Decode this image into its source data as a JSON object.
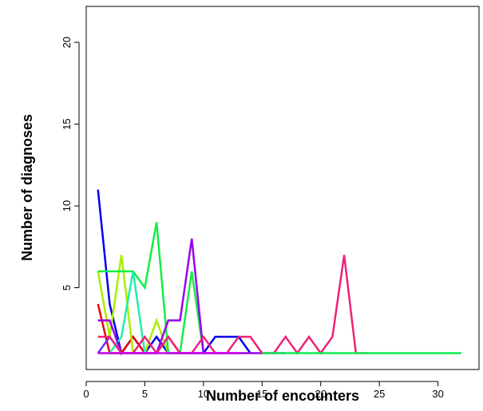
{
  "chart_data": {
    "type": "line",
    "title": "",
    "xlabel": "Number of encounters",
    "ylabel": "Number of diagnoses",
    "xlim": [
      0,
      33.5
    ],
    "ylim": [
      0,
      22.2
    ],
    "x_ticks": [
      0,
      5,
      10,
      15,
      20,
      25,
      30
    ],
    "y_ticks": [
      5,
      10,
      15,
      20
    ],
    "grid": false,
    "legend": "none",
    "series": [
      {
        "color": "#0000EE",
        "points": [
          [
            1,
            11
          ],
          [
            2,
            4
          ],
          [
            3,
            1
          ],
          [
            4,
            2
          ],
          [
            5,
            1
          ],
          [
            6,
            2
          ],
          [
            7,
            1
          ],
          [
            8,
            1
          ],
          [
            9,
            1
          ],
          [
            10,
            1
          ],
          [
            11,
            2
          ],
          [
            12,
            2
          ],
          [
            13,
            2
          ],
          [
            14,
            1
          ]
        ]
      },
      {
        "color": "#EE0000",
        "points": [
          [
            1,
            4
          ],
          [
            2,
            1
          ],
          [
            3,
            1
          ],
          [
            4,
            2
          ],
          [
            5,
            1
          ],
          [
            6,
            1
          ],
          [
            7,
            2
          ],
          [
            8,
            1
          ]
        ]
      },
      {
        "color": "#AAEE00",
        "points": [
          [
            1,
            6
          ],
          [
            2,
            2
          ],
          [
            3,
            7
          ],
          [
            4,
            1
          ],
          [
            5,
            1
          ],
          [
            6,
            3
          ],
          [
            7,
            1
          ]
        ]
      },
      {
        "color": "#11EE44",
        "points": [
          [
            1,
            6
          ],
          [
            2,
            6
          ],
          [
            3,
            6
          ],
          [
            4,
            6
          ],
          [
            5,
            5
          ],
          [
            6,
            9
          ],
          [
            7,
            1
          ],
          [
            8,
            1
          ],
          [
            9,
            6
          ],
          [
            10,
            1
          ]
        ]
      },
      {
        "color": "#22EEAA",
        "points": [
          [
            1,
            1
          ],
          [
            2,
            1
          ],
          [
            3,
            2
          ],
          [
            4,
            6
          ],
          [
            5,
            1
          ],
          [
            6,
            1
          ]
        ]
      },
      {
        "color": "#9900EE",
        "points": [
          [
            1,
            3
          ],
          [
            2,
            3
          ],
          [
            3,
            1
          ],
          [
            4,
            1
          ],
          [
            5,
            1
          ],
          [
            6,
            1
          ],
          [
            7,
            3
          ],
          [
            8,
            3
          ],
          [
            9,
            8
          ],
          [
            10,
            1
          ],
          [
            11,
            1
          ],
          [
            12,
            1
          ],
          [
            13,
            1
          ],
          [
            14,
            1
          ],
          [
            15,
            1
          ],
          [
            16,
            1
          ],
          [
            17,
            1
          ]
        ]
      },
      {
        "color": "#6633EE",
        "points": [
          [
            1,
            1
          ],
          [
            2,
            2
          ],
          [
            3,
            1
          ],
          [
            4,
            1
          ]
        ]
      },
      {
        "color": "#EE2277",
        "points": [
          [
            1,
            2
          ],
          [
            2,
            2
          ],
          [
            3,
            1
          ],
          [
            4,
            1
          ],
          [
            5,
            2
          ],
          [
            6,
            1
          ],
          [
            7,
            2
          ],
          [
            8,
            1
          ],
          [
            9,
            1
          ],
          [
            10,
            2
          ],
          [
            11,
            1
          ],
          [
            12,
            1
          ],
          [
            13,
            2
          ],
          [
            14,
            2
          ],
          [
            15,
            1
          ],
          [
            16,
            1
          ],
          [
            17,
            2
          ],
          [
            18,
            1
          ],
          [
            19,
            2
          ],
          [
            20,
            1
          ],
          [
            21,
            2
          ],
          [
            22,
            7
          ],
          [
            23,
            1
          ],
          [
            24,
            1
          ]
        ]
      },
      {
        "color": "#11EE55",
        "points": [
          [
            15,
            1
          ],
          [
            16,
            1
          ],
          [
            17,
            1
          ],
          [
            18,
            1
          ],
          [
            19,
            1
          ],
          [
            20,
            1
          ],
          [
            21,
            1
          ],
          [
            22,
            1
          ],
          [
            23,
            1
          ],
          [
            24,
            1
          ],
          [
            25,
            1
          ],
          [
            26,
            1
          ],
          [
            27,
            1
          ],
          [
            28,
            1
          ],
          [
            29,
            1
          ],
          [
            30,
            1
          ],
          [
            31,
            1
          ],
          [
            32,
            1
          ]
        ]
      },
      {
        "color": "#CC00EE",
        "points": [
          [
            1,
            1
          ],
          [
            2,
            1
          ],
          [
            3,
            1
          ],
          [
            4,
            1
          ],
          [
            5,
            1
          ],
          [
            6,
            1
          ],
          [
            7,
            1
          ],
          [
            8,
            1
          ],
          [
            9,
            1
          ],
          [
            10,
            1
          ],
          [
            11,
            1
          ],
          [
            12,
            1
          ],
          [
            13,
            1
          ]
        ]
      }
    ]
  }
}
